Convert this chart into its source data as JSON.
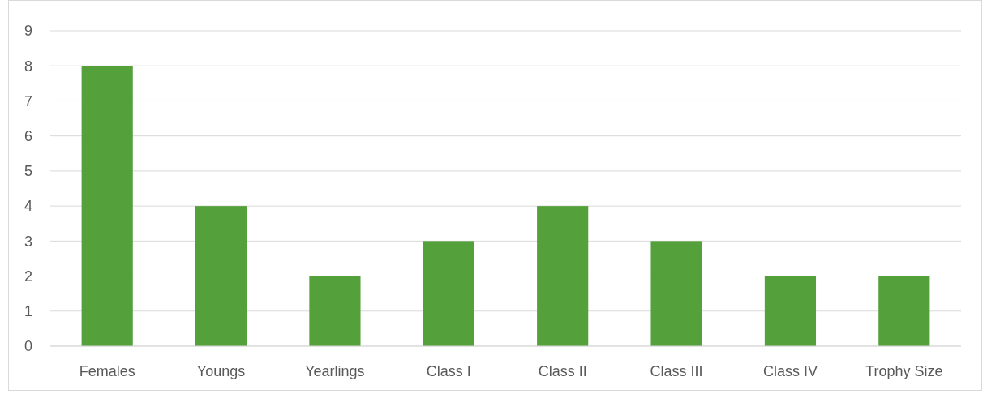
{
  "chart_data": {
    "type": "bar",
    "categories": [
      "Females",
      "Youngs",
      "Yearlings",
      "Class I",
      "Class II",
      "Class III",
      "Class IV",
      "Trophy Size"
    ],
    "values": [
      8,
      4,
      2,
      3,
      4,
      3,
      2,
      2
    ],
    "color": "#54a03a",
    "ylim": [
      0,
      9
    ],
    "yticks": [
      0,
      1,
      2,
      3,
      4,
      5,
      6,
      7,
      8,
      9
    ],
    "grid": "y"
  }
}
